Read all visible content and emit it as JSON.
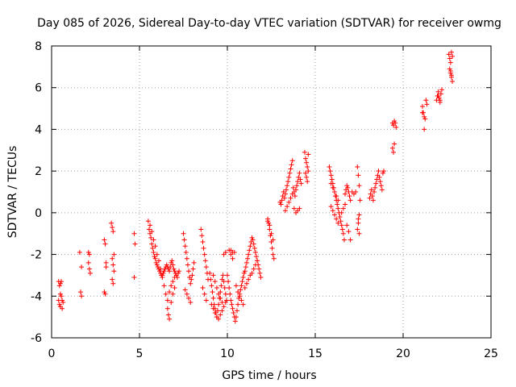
{
  "chart_data": {
    "type": "scatter",
    "title": "Day 085 of 2026, Sidereal Day-to-day VTEC variation (SDTVAR) for receiver owmg",
    "xlabel": "GPS time / hours",
    "ylabel": "SDTVAR / TECUs",
    "xlim": [
      0,
      25
    ],
    "ylim": [
      -6,
      8
    ],
    "xticks": [
      0,
      5,
      10,
      15,
      20,
      25
    ],
    "yticks": [
      -6,
      -4,
      -2,
      0,
      2,
      4,
      6,
      8
    ],
    "grid": true,
    "marker": "+",
    "color": "#ff0000",
    "series": [
      {
        "name": "SDTVAR",
        "x": [
          0.4,
          0.45,
          0.5,
          0.55,
          0.4,
          0.45,
          0.5,
          0.6,
          0.5,
          0.55,
          0.6,
          0.65,
          1.6,
          1.7,
          1.65,
          1.7,
          2.1,
          2.15,
          2.2,
          2.1,
          2.15,
          3.0,
          3.05,
          3.1,
          3.0,
          3.05,
          3.1,
          3.4,
          3.45,
          3.5,
          3.55,
          3.45,
          3.5,
          3.55,
          3.5,
          3.45,
          4.7,
          4.75,
          4.7,
          5.5,
          5.55,
          5.6,
          5.65,
          5.7,
          5.75,
          5.8,
          5.85,
          5.9,
          5.95,
          6.0,
          6.05,
          6.1,
          6.15,
          6.2,
          6.25,
          6.3,
          6.35,
          6.4,
          6.45,
          6.5,
          6.55,
          6.6,
          6.65,
          6.7,
          6.75,
          6.8,
          6.85,
          6.9,
          6.95,
          7.0,
          7.05,
          7.1,
          7.15,
          7.2,
          7.25,
          5.6,
          5.7,
          5.8,
          5.9,
          6.0,
          6.1,
          6.2,
          6.3,
          6.4,
          6.5,
          6.6,
          6.7,
          6.8,
          6.9,
          7.0,
          6.6,
          6.65,
          6.7,
          6.8,
          6.9,
          7.0,
          7.5,
          7.55,
          7.6,
          7.65,
          7.7,
          7.75,
          7.8,
          7.85,
          7.9,
          7.95,
          8.0,
          8.05,
          8.1,
          7.6,
          7.7,
          7.8,
          7.9,
          8.5,
          8.55,
          8.6,
          8.65,
          8.7,
          8.75,
          8.8,
          8.85,
          8.9,
          8.6,
          8.7,
          8.8,
          9.0,
          9.05,
          9.1,
          9.15,
          9.2,
          9.25,
          9.3,
          9.35,
          9.4,
          9.45,
          9.5,
          9.55,
          9.6,
          9.65,
          9.7,
          9.75,
          9.8,
          9.85,
          9.9,
          9.95,
          9.1,
          9.2,
          9.3,
          9.4,
          9.5,
          9.6,
          9.7,
          9.8,
          9.9,
          9.2,
          9.3,
          9.4,
          9.5,
          9.6,
          9.7,
          10.0,
          10.05,
          10.1,
          10.15,
          10.2,
          10.25,
          10.3,
          10.35,
          10.4,
          10.45,
          10.5,
          10.55,
          10.6,
          10.65,
          10.7,
          10.75,
          10.8,
          10.85,
          10.9,
          10.95,
          10.1,
          10.2,
          10.3,
          10.4,
          10.5,
          10.6,
          10.7,
          10.8,
          10.9,
          9.8,
          9.9,
          10.2,
          10.3,
          11.0,
          11.05,
          11.1,
          11.15,
          11.2,
          11.25,
          11.3,
          11.35,
          11.4,
          11.45,
          11.5,
          11.55,
          11.6,
          11.65,
          11.7,
          11.75,
          11.8,
          11.85,
          11.9,
          11.0,
          11.1,
          11.2,
          11.3,
          11.4,
          11.5,
          11.6,
          11.7,
          12.3,
          12.35,
          12.4,
          12.45,
          12.5,
          12.55,
          12.6,
          12.65,
          12.3,
          12.4,
          12.5,
          12.6,
          13.0,
          13.05,
          13.1,
          13.15,
          13.2,
          13.25,
          13.3,
          13.35,
          13.4,
          13.45,
          13.5,
          13.55,
          13.6,
          13.65,
          13.7,
          13.75,
          13.8,
          13.85,
          13.9,
          13.95,
          14.0,
          14.05,
          14.1,
          14.15,
          14.2,
          13.3,
          13.4,
          13.5,
          13.6,
          13.7,
          13.8,
          13.9,
          14.0,
          14.1,
          14.4,
          14.45,
          14.5,
          14.55,
          14.6,
          14.45,
          14.5,
          14.55,
          14.6,
          15.8,
          15.85,
          15.9,
          15.95,
          16.0,
          16.05,
          16.1,
          16.15,
          16.2,
          16.25,
          16.3,
          16.35,
          16.4,
          16.45,
          16.5,
          16.55,
          16.6,
          16.65,
          16.7,
          16.75,
          16.8,
          16.85,
          16.9,
          16.95,
          17.0,
          15.9,
          16.0,
          16.1,
          16.2,
          16.3,
          16.4,
          16.5,
          16.6,
          16.7,
          16.8,
          16.9,
          17.0,
          15.9,
          16.0,
          16.1,
          16.2,
          16.3,
          17.1,
          17.2,
          17.3,
          17.4,
          17.45,
          17.5,
          17.55,
          17.5,
          17.45,
          17.4,
          17.5,
          17.45,
          18.1,
          18.15,
          18.2,
          18.25,
          18.3,
          18.35,
          18.4,
          18.45,
          18.5,
          18.55,
          18.6,
          18.65,
          18.7,
          18.75,
          18.8,
          18.85,
          18.9,
          19.4,
          19.45,
          19.5,
          19.55,
          19.6,
          19.4,
          19.45,
          19.5,
          21.1,
          21.15,
          21.2,
          21.25,
          21.3,
          21.35,
          21.2,
          21.1,
          21.9,
          21.95,
          22.0,
          22.05,
          22.1,
          22.15,
          22.2,
          22.0,
          22.1,
          22.6,
          22.65,
          22.7,
          22.75,
          22.8,
          22.65,
          22.7,
          22.75,
          22.8,
          22.7,
          22.75
        ],
        "y": [
          -3.3,
          -3.5,
          -3.4,
          -3.3,
          -4.2,
          -4.4,
          -4.5,
          -4.6,
          -3.9,
          -4.0,
          -4.2,
          -4.3,
          -1.9,
          -2.6,
          -3.8,
          -4.0,
          -1.9,
          -2.7,
          -2.9,
          -2.4,
          -2.0,
          -1.3,
          -1.5,
          -2.6,
          -3.8,
          -3.9,
          -2.4,
          -0.5,
          -0.7,
          -0.9,
          -2.0,
          -2.2,
          -2.5,
          -2.8,
          -3.4,
          -3.2,
          -1.0,
          -1.5,
          -3.1,
          -0.4,
          -0.8,
          -1.0,
          -1.2,
          -1.5,
          -1.7,
          -1.9,
          -2.1,
          -2.2,
          -2.4,
          -2.5,
          -2.6,
          -2.7,
          -2.8,
          -2.9,
          -3.0,
          -3.0,
          -2.9,
          -2.8,
          -2.7,
          -2.6,
          -2.5,
          -2.6,
          -2.7,
          -2.8,
          -2.6,
          -2.4,
          -2.3,
          -2.5,
          -2.7,
          -2.8,
          -2.9,
          -3.0,
          -3.1,
          -2.9,
          -2.8,
          -0.6,
          -0.9,
          -1.3,
          -1.6,
          -2.0,
          -2.3,
          -2.7,
          -3.1,
          -3.5,
          -3.9,
          -4.2,
          -3.8,
          -3.5,
          -3.3,
          -3.1,
          -4.6,
          -4.9,
          -5.1,
          -4.3,
          -3.9,
          -3.6,
          -1.0,
          -1.3,
          -1.6,
          -1.9,
          -2.2,
          -2.5,
          -2.8,
          -3.1,
          -3.4,
          -3.2,
          -3.0,
          -2.7,
          -2.4,
          -3.7,
          -3.9,
          -4.1,
          -4.3,
          -0.8,
          -1.1,
          -1.4,
          -1.7,
          -2.0,
          -2.3,
          -2.6,
          -2.9,
          -3.2,
          -3.6,
          -3.9,
          -4.2,
          -2.9,
          -3.2,
          -3.5,
          -3.8,
          -4.1,
          -4.4,
          -4.6,
          -4.8,
          -5.0,
          -4.7,
          -4.4,
          -4.1,
          -3.8,
          -3.5,
          -3.2,
          -3.0,
          -3.3,
          -3.6,
          -3.9,
          -4.2,
          -4.4,
          -4.6,
          -4.8,
          -5.0,
          -5.1,
          -4.9,
          -4.7,
          -4.5,
          -4.3,
          -3.0,
          -3.3,
          -3.6,
          -3.9,
          -4.1,
          -4.3,
          -3.0,
          -3.3,
          -3.6,
          -3.9,
          -4.2,
          -4.4,
          -4.6,
          -4.8,
          -5.0,
          -5.2,
          -5.0,
          -4.7,
          -4.4,
          -4.1,
          -3.9,
          -3.7,
          -3.5,
          -3.3,
          -3.1,
          -2.9,
          -1.8,
          -2.0,
          -2.2,
          -1.9,
          -3.5,
          -3.8,
          -4.0,
          -4.2,
          -4.4,
          -2.0,
          -1.9,
          -1.8,
          -1.9,
          -2.8,
          -2.6,
          -2.4,
          -2.2,
          -2.0,
          -1.8,
          -1.6,
          -1.4,
          -1.2,
          -1.3,
          -1.5,
          -1.7,
          -1.9,
          -2.1,
          -2.3,
          -2.5,
          -2.7,
          -2.9,
          -3.1,
          -3.6,
          -3.4,
          -3.2,
          -3.0,
          -2.9,
          -2.7,
          -2.5,
          -2.3,
          -0.3,
          -0.5,
          -0.8,
          -1.1,
          -1.4,
          -1.7,
          -2.0,
          -2.2,
          -0.4,
          -0.6,
          -1.0,
          -1.3,
          0.5,
          0.4,
          0.6,
          0.8,
          1.0,
          0.7,
          0.9,
          1.1,
          1.3,
          1.5,
          1.7,
          1.9,
          2.1,
          2.3,
          2.5,
          1.2,
          1.0,
          0.8,
          1.1,
          1.3,
          1.5,
          1.7,
          1.9,
          1.6,
          1.4,
          0.1,
          0.3,
          0.5,
          0.7,
          0.9,
          0.2,
          0.0,
          0.1,
          0.2,
          2.9,
          2.6,
          2.4,
          2.2,
          2.0,
          1.9,
          1.7,
          1.5,
          2.8,
          2.2,
          2.0,
          1.8,
          1.6,
          1.4,
          1.2,
          1.0,
          0.8,
          0.6,
          0.4,
          0.2,
          0.0,
          -0.2,
          -0.4,
          -0.6,
          -0.8,
          -1.0,
          -1.3,
          0.9,
          1.1,
          1.3,
          1.2,
          1.0,
          0.8,
          0.6,
          0.3,
          0.1,
          -0.1,
          -0.3,
          -0.5,
          -0.2,
          0.0,
          0.2,
          0.4,
          -0.6,
          -0.9,
          -1.3,
          1.4,
          1.2,
          1.0,
          0.8,
          0.6,
          1.0,
          0.9,
          1.0,
          2.2,
          1.8,
          1.3,
          0.6,
          -0.1,
          -0.5,
          -0.8,
          -1.0,
          -0.3,
          0.7,
          0.9,
          1.1,
          0.8,
          0.6,
          1.0,
          1.2,
          1.4,
          1.6,
          1.8,
          2.0,
          1.7,
          1.5,
          1.3,
          1.1,
          1.9,
          2.0,
          4.3,
          4.2,
          4.4,
          4.3,
          4.1,
          3.1,
          2.9,
          3.3,
          5.1,
          4.8,
          4.6,
          4.5,
          5.4,
          5.2,
          4.0,
          4.8,
          5.4,
          5.6,
          5.8,
          5.5,
          5.3,
          5.7,
          5.9,
          5.6,
          5.4,
          7.6,
          7.4,
          7.2,
          7.7,
          7.5,
          6.9,
          6.7,
          6.5,
          6.3,
          6.8,
          6.6
        ]
      }
    ]
  }
}
